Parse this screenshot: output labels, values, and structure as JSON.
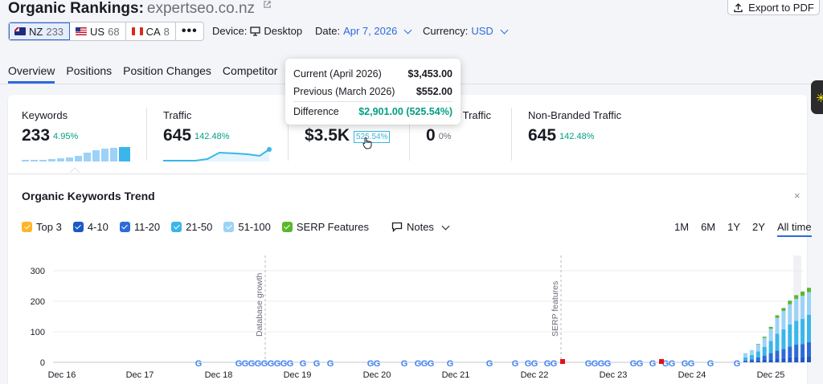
{
  "header": {
    "title": "Organic Rankings:",
    "domain": "expertseo.co.nz",
    "export_label": "Export to PDF"
  },
  "databases": [
    {
      "code": "NZ",
      "count": "233",
      "flag": "nz"
    },
    {
      "code": "US",
      "count": "68",
      "flag": "us"
    },
    {
      "code": "CA",
      "count": "8",
      "flag": "ca"
    }
  ],
  "more_label": "•••",
  "filters": {
    "device_label": "Device:",
    "device_value": "Desktop",
    "date_label": "Date:",
    "date_value": "Apr 7, 2026",
    "currency_label": "Currency:",
    "currency_value": "USD"
  },
  "tabs": [
    "Overview",
    "Positions",
    "Position Changes",
    "Competitor"
  ],
  "active_tab": "Overview",
  "metrics": {
    "keywords": {
      "label": "Keywords",
      "value": "233",
      "delta": "4.95%"
    },
    "traffic": {
      "label": "Traffic",
      "value": "645",
      "delta": "142.48%"
    },
    "traffic_cost": {
      "value": "$3.5K",
      "delta": "525.54%"
    },
    "branded": {
      "label": "d Traffic",
      "value": "0",
      "delta": "0%"
    },
    "non_branded": {
      "label": "Non-Branded Traffic",
      "value": "645",
      "delta": "142.48%"
    }
  },
  "tooltip": {
    "current_label": "Current (April 2026)",
    "current_value": "$3,453.00",
    "previous_label": "Previous (March 2026)",
    "previous_value": "$552.00",
    "difference_label": "Difference",
    "difference_value": "$2,901.00",
    "difference_pct": "(525.54%)"
  },
  "trend": {
    "title": "Organic Keywords Trend",
    "close": "×",
    "legend": [
      {
        "label": "Top 3",
        "color": "#ffb527"
      },
      {
        "label": "4-10",
        "color": "#1c58c6"
      },
      {
        "label": "11-20",
        "color": "#2d6ada"
      },
      {
        "label": "21-50",
        "color": "#3ab6ea"
      },
      {
        "label": "51-100",
        "color": "#9cd2f7"
      },
      {
        "label": "SERP Features",
        "color": "#59b829"
      }
    ],
    "notes_label": "Notes",
    "ranges": [
      "1M",
      "6M",
      "1Y",
      "2Y",
      "All time"
    ],
    "active_range": "All time"
  },
  "chart_data": {
    "type": "bar",
    "ylim": [
      0,
      300
    ],
    "y_ticks": [
      "300",
      "200",
      "100",
      "0"
    ],
    "x_labels": [
      "Dec 16",
      "Dec 17",
      "Dec 18",
      "Dec 19",
      "Dec 20",
      "Dec 21",
      "Dec 22",
      "Dec 23",
      "Dec 24",
      "Dec 25"
    ],
    "annotations": [
      "Database growth",
      "SERP features"
    ],
    "series": [
      {
        "name": "4-10",
        "values": [
          2,
          4,
          6,
          8,
          10,
          12,
          14,
          16,
          18,
          18,
          20
        ]
      },
      {
        "name": "11-20",
        "values": [
          4,
          6,
          10,
          14,
          20,
          26,
          30,
          36,
          40,
          42,
          46
        ]
      },
      {
        "name": "21-50",
        "values": [
          10,
          14,
          20,
          28,
          40,
          56,
          64,
          72,
          78,
          82,
          90
        ]
      },
      {
        "name": "51-100",
        "values": [
          14,
          16,
          22,
          30,
          40,
          52,
          60,
          66,
          72,
          76,
          74
        ]
      },
      {
        "name": "SERP Features",
        "values": [
          0,
          0,
          2,
          4,
          6,
          8,
          10,
          12,
          12,
          14,
          14
        ]
      }
    ]
  },
  "colors": {
    "accent": "#2d6ada",
    "positive": "#009f81",
    "google_icon": "#4285f4",
    "flag_marker": "#e0111e"
  }
}
